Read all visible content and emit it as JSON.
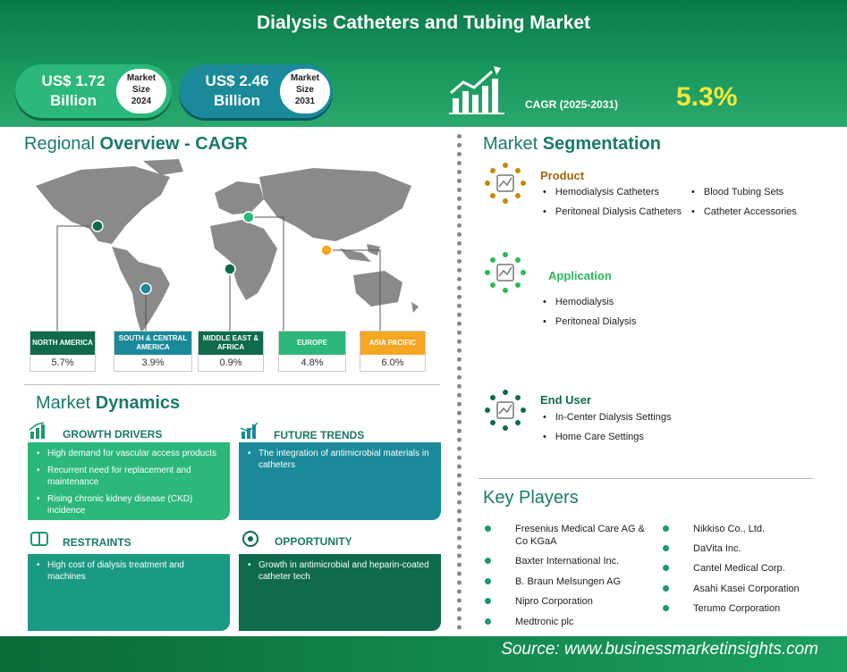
{
  "title": "Dialysis Catheters and Tubing Market",
  "market_size": [
    {
      "value": "US$ 1.72 Billion",
      "badge": [
        "Market",
        "Size",
        "2024"
      ]
    },
    {
      "value": "US$ 2.46 Billion",
      "badge": [
        "Market",
        "Size",
        "2031"
      ]
    }
  ],
  "cagr": {
    "label": "CAGR (2025-2031)",
    "value": "5.3%"
  },
  "regional": {
    "title_light": "Regional ",
    "title_bold": "Overview - CAGR",
    "regions": [
      {
        "name": "NORTH AMERICA",
        "value": "5.7%",
        "color": "#0f6b4a"
      },
      {
        "name": "SOUTH & CENTRAL AMERICA",
        "value": "3.9%",
        "color": "#1a8a9a"
      },
      {
        "name": "MIDDLE EAST & AFRICA",
        "value": "0.9%",
        "color": "#0f6b4a"
      },
      {
        "name": "EUROPE",
        "value": "4.8%",
        "color": "#2bb87a"
      },
      {
        "name": "ASIA PACIFIC",
        "value": "6.0%",
        "color": "#f5a623"
      }
    ]
  },
  "segmentation": {
    "title_light": "Market ",
    "title_bold": "Segmentation",
    "product": {
      "label": "Product",
      "color": "#a0660a",
      "items": [
        "Hemodialysis Catheters",
        "Blood Tubing Sets",
        "Peritoneal Dialysis Catheters",
        "Catheter Accessories"
      ]
    },
    "application": {
      "label": "Application",
      "color": "#2bb85a",
      "items": [
        "Hemodialysis",
        "Peritoneal Dialysis"
      ]
    },
    "end_user": {
      "label": "End User",
      "color": "#0f6b4a",
      "items": [
        "In-Center Dialysis Settings",
        "Home Care Settings"
      ]
    }
  },
  "dynamics": {
    "title_light": "Market ",
    "title_bold": "Dynamics",
    "growth_drivers": {
      "label": "GROWTH DRIVERS",
      "items": [
        "High demand for vascular access products",
        "Recurrent need for replacement and maintenance",
        "Rising chronic kidney disease (CKD) incidence"
      ]
    },
    "future_trends": {
      "label": "FUTURE TRENDS",
      "items": [
        "The integration of antimicrobial materials in catheters"
      ]
    },
    "restraints": {
      "label": "RESTRAINTS",
      "items": [
        "High cost of dialysis treatment and machines"
      ]
    },
    "opportunity": {
      "label": "OPPORTUNITY",
      "items": [
        "Growth in antimicrobial and heparin-coated catheter tech"
      ]
    }
  },
  "key_players": {
    "title": "Key Players",
    "left": [
      "Fresenius Medical Care AG & Co KGaA",
      "Baxter International Inc.",
      "B. Braun Melsungen AG",
      "Nipro Corporation",
      "Medtronic plc"
    ],
    "right": [
      "Nikkiso Co., Ltd.",
      "DaVita Inc.",
      "Cantel Medical Corp.",
      "Asahi Kasei Corporation",
      "Terumo Corporation"
    ]
  },
  "source": "Source: www.businessmarketinsights.com"
}
